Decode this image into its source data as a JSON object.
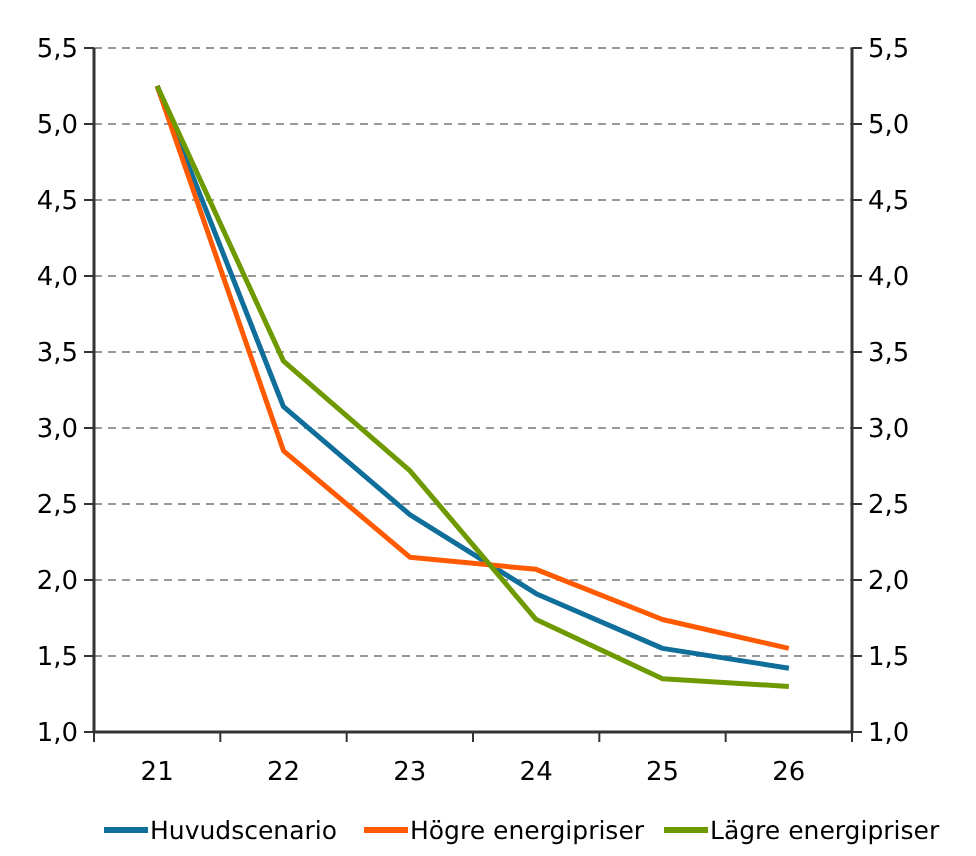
{
  "chart_data": {
    "type": "line",
    "categories": [
      "21",
      "22",
      "23",
      "24",
      "25",
      "26"
    ],
    "series": [
      {
        "name": "Huvudscenario",
        "color": "#0f6e9a",
        "values": [
          5.25,
          3.14,
          2.43,
          1.91,
          1.55,
          1.42
        ]
      },
      {
        "name": "Högre energipriser",
        "color": "#ff5a00",
        "values": [
          5.25,
          2.85,
          2.15,
          2.07,
          1.74,
          1.55
        ]
      },
      {
        "name": "Lägre energipriser",
        "color": "#6e9a00",
        "values": [
          5.25,
          3.44,
          2.72,
          1.74,
          1.35,
          1.3
        ]
      }
    ],
    "ylim": [
      1,
      5.5
    ],
    "yticks": [
      {
        "value": 1,
        "label": "1,0"
      },
      {
        "value": 1.5,
        "label": "1,5"
      },
      {
        "value": 2,
        "label": "2,0"
      },
      {
        "value": 2.5,
        "label": "2,5"
      },
      {
        "value": 3,
        "label": "3,0"
      },
      {
        "value": 3.5,
        "label": "3,5"
      },
      {
        "value": 4,
        "label": "4,0"
      },
      {
        "value": 4.5,
        "label": "4,5"
      },
      {
        "value": 5,
        "label": "5,0"
      },
      {
        "value": 5.5,
        "label": "5,5"
      }
    ],
    "y2lim": [
      1,
      5.5
    ],
    "y2ticks": [
      {
        "value": 1,
        "label": "1,0"
      },
      {
        "value": 1.5,
        "label": "1,5"
      },
      {
        "value": 2,
        "label": "2,0"
      },
      {
        "value": 2.5,
        "label": "2,5"
      },
      {
        "value": 3,
        "label": "3,0"
      },
      {
        "value": 3.5,
        "label": "3,5"
      },
      {
        "value": 4,
        "label": "4,0"
      },
      {
        "value": 4.5,
        "label": "4,5"
      },
      {
        "value": 5,
        "label": "5,0"
      },
      {
        "value": 5.5,
        "label": "5,5"
      }
    ],
    "grid": "y",
    "legend": "bottom",
    "line_style": "solid",
    "marker": "none"
  }
}
